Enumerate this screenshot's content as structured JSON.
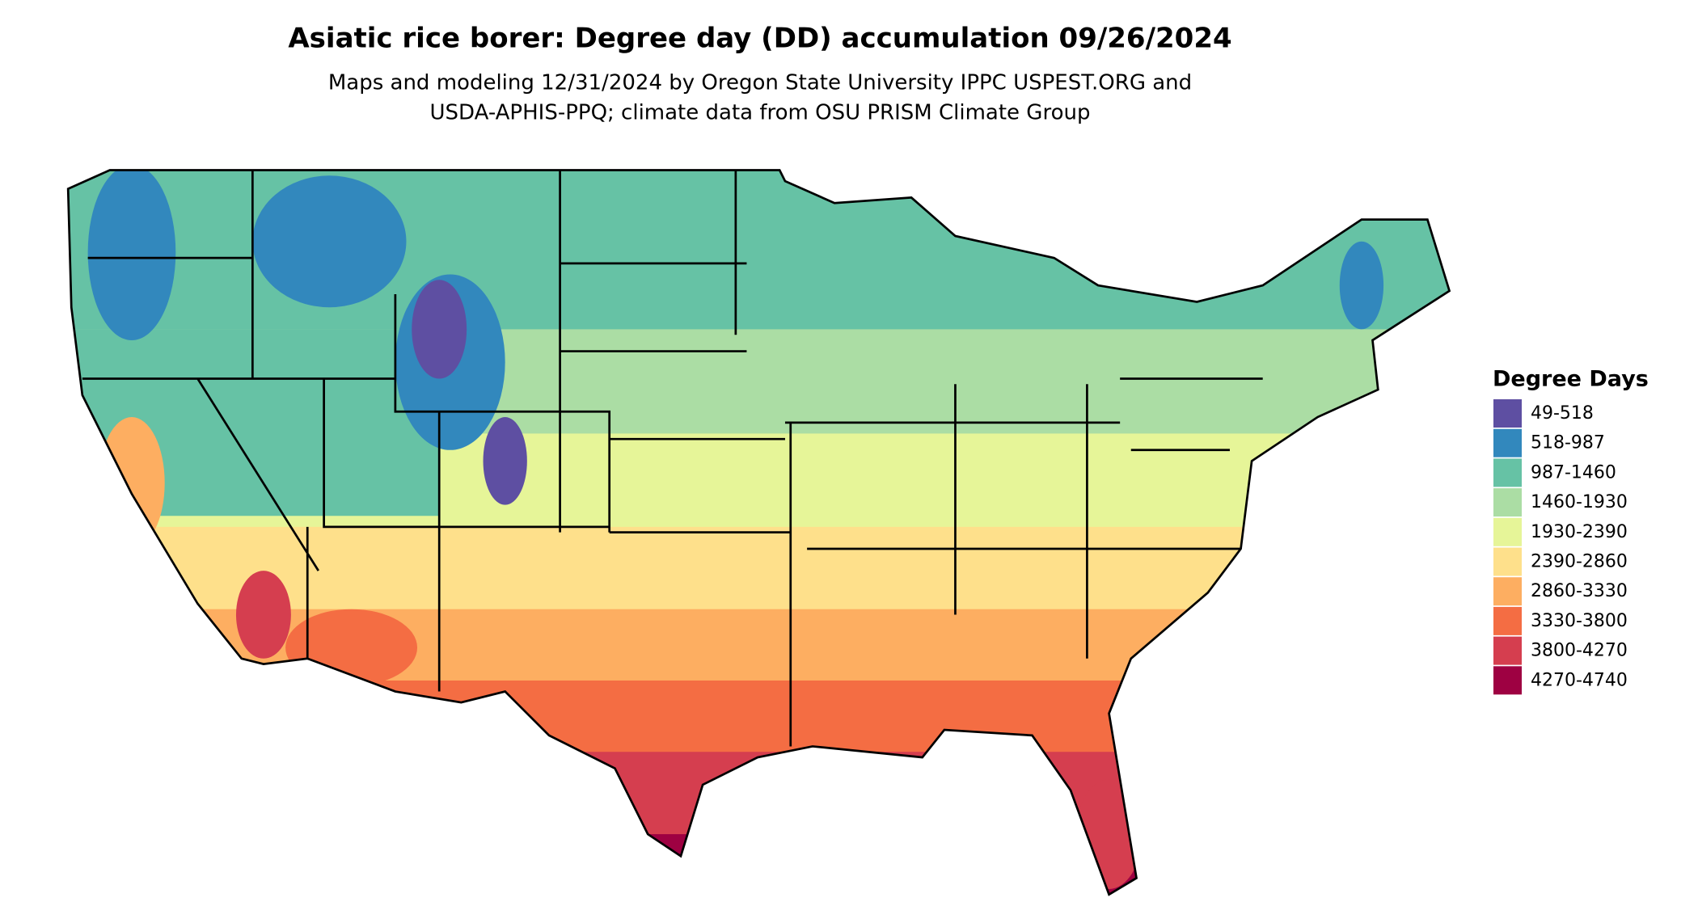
{
  "title": "Asiatic rice borer: Degree day (DD) accumulation 09/26/2024",
  "subtitle_lines": [
    "Maps and modeling 12/31/2024 by Oregon State University IPPC USPEST.ORG and",
    "USDA-APHIS-PPQ; climate data from OSU PRISM Climate Group"
  ],
  "legend": {
    "title": "Degree Days",
    "items": [
      {
        "label": "49-518",
        "color": "#5e4fa2"
      },
      {
        "label": "518-987",
        "color": "#3288bd"
      },
      {
        "label": "987-1460",
        "color": "#66c2a5"
      },
      {
        "label": "1460-1930",
        "color": "#abdda4"
      },
      {
        "label": "1930-2390",
        "color": "#e6f598"
      },
      {
        "label": "2390-2860",
        "color": "#fee08b"
      },
      {
        "label": "2860-3330",
        "color": "#fdae61"
      },
      {
        "label": "3330-3800",
        "color": "#f46d43"
      },
      {
        "label": "3800-4270",
        "color": "#d53e4f"
      },
      {
        "label": "4270-4740",
        "color": "#9e0142"
      }
    ]
  }
}
